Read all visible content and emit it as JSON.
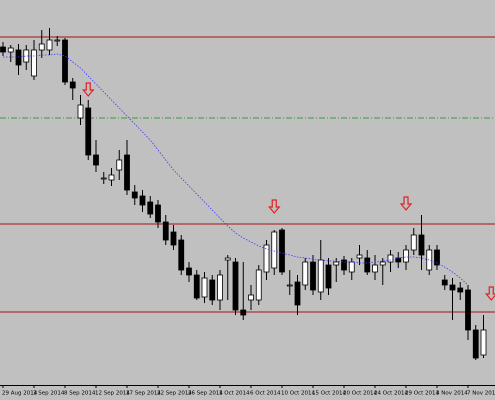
{
  "chart_data": {
    "type": "candlestick",
    "categories": [
      "29 Aug 2014",
      null,
      null,
      null,
      "3 Sep 2014",
      null,
      null,
      null,
      "8 Sep 2014",
      null,
      null,
      null,
      "12 Sep 2014",
      null,
      null,
      null,
      "17 Sep 2014",
      null,
      null,
      null,
      "22 Sep 2014",
      null,
      null,
      null,
      "26 Sep 2014",
      null,
      null,
      null,
      "1 Oct 2014",
      null,
      null,
      null,
      "6 Oct 2014",
      null,
      null,
      null,
      "10 Oct 2014",
      null,
      null,
      null,
      "15 Oct 2014",
      null,
      null,
      null,
      "20 Oct 2014",
      null,
      null,
      null,
      "24 Oct 2014",
      null,
      null,
      null,
      "29 Oct 2014",
      null,
      null,
      null,
      "3 Nov 2014",
      null,
      null,
      null,
      "7 Nov 2014",
      null,
      null
    ],
    "open": [
      353,
      348,
      350,
      338,
      324,
      350,
      350,
      360,
      360,
      318,
      282,
      292,
      245,
      222,
      220,
      230,
      245,
      208,
      204,
      198,
      195,
      178,
      168,
      160,
      132,
      125,
      103,
      120,
      100,
      140,
      138,
      90,
      100,
      100,
      128,
      132,
      170,
      115,
      118,
      115,
      138,
      108,
      135,
      135,
      140,
      128,
      142,
      142,
      128,
      135,
      138,
      142,
      138,
      150,
      165,
      130,
      150,
      120,
      115,
      112,
      110,
      70,
      45
    ],
    "high": [
      358,
      355,
      356,
      355,
      360,
      370,
      372,
      364,
      362,
      322,
      305,
      300,
      260,
      228,
      232,
      250,
      260,
      215,
      210,
      204,
      200,
      185,
      175,
      165,
      138,
      130,
      128,
      125,
      130,
      145,
      142,
      138,
      115,
      135,
      160,
      170,
      172,
      130,
      125,
      142,
      145,
      160,
      142,
      142,
      144,
      142,
      155,
      150,
      145,
      142,
      150,
      148,
      155,
      172,
      185,
      155,
      155,
      125,
      122,
      118,
      115,
      75,
      85
    ],
    "low": [
      344,
      338,
      325,
      330,
      320,
      342,
      345,
      354,
      315,
      300,
      275,
      240,
      228,
      216,
      214,
      220,
      205,
      195,
      188,
      182,
      172,
      155,
      150,
      125,
      118,
      100,
      97,
      95,
      90,
      100,
      85,
      80,
      90,
      95,
      120,
      125,
      125,
      105,
      85,
      110,
      105,
      100,
      105,
      118,
      125,
      120,
      135,
      125,
      120,
      115,
      128,
      132,
      130,
      145,
      130,
      125,
      130,
      110,
      80,
      100,
      60,
      40,
      42
    ],
    "close": [
      348,
      352,
      335,
      350,
      350,
      356,
      360,
      360,
      318,
      312,
      295,
      245,
      235,
      222,
      225,
      240,
      210,
      202,
      195,
      186,
      178,
      160,
      155,
      130,
      125,
      102,
      122,
      100,
      125,
      142,
      90,
      85,
      105,
      130,
      155,
      168,
      128,
      115,
      95,
      138,
      110,
      140,
      112,
      138,
      130,
      138,
      145,
      128,
      135,
      138,
      145,
      138,
      150,
      165,
      145,
      150,
      135,
      115,
      110,
      108,
      70,
      42,
      70
    ],
    "ma": {
      "color": "#3a3aff",
      "values": [
        343,
        343,
        343,
        344,
        344,
        345,
        345,
        346,
        344,
        338,
        332,
        324,
        316,
        308,
        300,
        292,
        284,
        276,
        268,
        260,
        250,
        240,
        230,
        222,
        214,
        206,
        198,
        190,
        182,
        174,
        167,
        162,
        158,
        154,
        151,
        149,
        147,
        145,
        143,
        142,
        141,
        140,
        139,
        139,
        138,
        138,
        137,
        137,
        138,
        139,
        140,
        142,
        143,
        143,
        142,
        140,
        137,
        133,
        128,
        122,
        115,
        null,
        null
      ]
    },
    "levels": [
      {
        "value": 363,
        "color": "#a01010"
      },
      {
        "value": 282,
        "color": "#3c9a3c"
      },
      {
        "value": 176,
        "color": "#a01010"
      },
      {
        "value": 88,
        "color": "#a01010"
      }
    ],
    "arrows": [
      {
        "index": 11,
        "value": 310
      },
      {
        "index": 35,
        "value": 193
      },
      {
        "index": 52,
        "value": 196
      },
      {
        "index": 63,
        "value": 106
      }
    ],
    "ylim": [
      15,
      400
    ],
    "up_color": "#ffffff",
    "down_color": "#000000",
    "arrow_color": "#e02020"
  }
}
